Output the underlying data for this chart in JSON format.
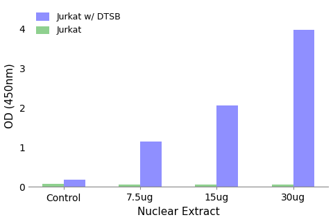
{
  "categories": [
    "Control",
    "7.5ug",
    "15ug",
    "30ug"
  ],
  "series": [
    {
      "label": "Jurkat",
      "color": "#7bc87b",
      "values": [
        0.07,
        0.06,
        0.06,
        0.06
      ]
    },
    {
      "label": "Jurkat w/ DTSB",
      "color": "#7b7bff",
      "values": [
        0.18,
        1.15,
        2.06,
        3.97
      ]
    }
  ],
  "xlabel": "Nuclear Extract",
  "ylabel": "OD (450nm)",
  "ylim": [
    0,
    4.6
  ],
  "yticks": [
    0,
    1,
    2,
    3,
    4
  ],
  "bar_width": 0.28,
  "legend_order": [
    "Jurkat w/ DTSB",
    "Jurkat"
  ],
  "legend_loc": "upper left",
  "figsize": [
    4.8,
    3.2
  ],
  "dpi": 100,
  "background_color": "#ffffff"
}
